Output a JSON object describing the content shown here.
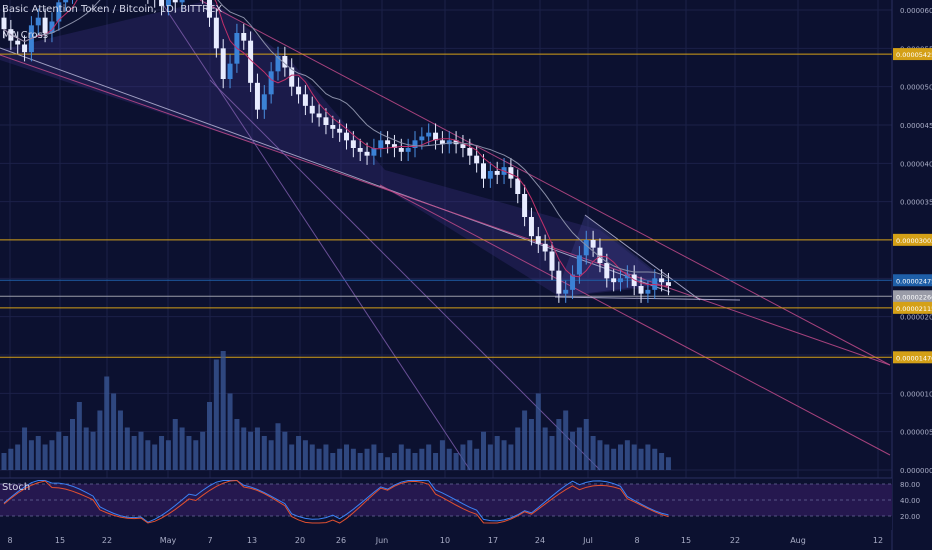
{
  "header": {
    "symbol": "Basic Attention Token / Bitcoin, 1D, BITTREX",
    "indicator": "MA Cross",
    "stoch_label": "Stoch"
  },
  "chart_data": {
    "type": "candlestick",
    "x_ticks": [
      "8",
      "15",
      "22",
      "May",
      "7",
      "13",
      "20",
      "26",
      "Jun",
      "10",
      "17",
      "24",
      "Jul",
      "8",
      "15",
      "22",
      "Aug",
      "12"
    ],
    "y_ticks": [
      "0.00006000",
      "0.00005500",
      "0.00005000",
      "0.00004500",
      "0.00004000",
      "0.00003500",
      "0.00003000",
      "0.00002500",
      "0.00002000",
      "0.00001500",
      "0.00001000",
      "0.00000500",
      "0.00000000"
    ],
    "horizontal_levels": [
      {
        "value": 5.425e-05,
        "label": "0.00005425",
        "color": "#d4a017"
      },
      {
        "value": 3.002e-05,
        "label": "0.00003002",
        "color": "#d4a017"
      },
      {
        "value": 2.475e-05,
        "label": "0.00002475",
        "color": "#1e5fa8"
      },
      {
        "value": 2.266e-05,
        "label": "0.00002266",
        "color": "#9a9ca8"
      },
      {
        "value": 2.115e-05,
        "label": "0.00002115",
        "color": "#d4a017"
      },
      {
        "value": 1.47e-05,
        "label": "0.00001470",
        "color": "#d4a017"
      }
    ],
    "stoch_ticks": [
      "80.00",
      "40.00",
      "20.00"
    ],
    "close": [
      5.75,
      5.6,
      5.55,
      5.45,
      5.8,
      5.9,
      5.7,
      5.85,
      6.1,
      6.2,
      6.3,
      6.45,
      6.5,
      6.6,
      6.7,
      6.8,
      6.75,
      6.6,
      6.55,
      6.4,
      6.35,
      6.2,
      6.15,
      6.05,
      6.2,
      6.1,
      6.3,
      6.5,
      6.4,
      6.2,
      5.9,
      5.5,
      5.1,
      5.3,
      5.7,
      5.6,
      5.05,
      4.7,
      4.9,
      5.2,
      5.4,
      5.25,
      5.0,
      4.9,
      4.75,
      4.65,
      4.6,
      4.5,
      4.45,
      4.4,
      4.3,
      4.2,
      4.15,
      4.1,
      4.2,
      4.3,
      4.25,
      4.2,
      4.15,
      4.2,
      4.3,
      4.35,
      4.4,
      4.3,
      4.25,
      4.3,
      4.25,
      4.2,
      4.1,
      4.0,
      3.8,
      3.9,
      3.85,
      3.95,
      3.8,
      3.6,
      3.3,
      3.05,
      2.95,
      2.85,
      2.6,
      2.3,
      2.35,
      2.55,
      2.8,
      3.0,
      2.9,
      2.7,
      2.5,
      2.45,
      2.5,
      2.55,
      2.4,
      2.3,
      2.35,
      2.5,
      2.45,
      2.4
    ],
    "open": [
      5.9,
      5.75,
      5.6,
      5.55,
      5.45,
      5.8,
      5.9,
      5.7,
      5.85,
      6.1,
      6.2,
      6.3,
      6.45,
      6.5,
      6.6,
      6.7,
      6.8,
      6.75,
      6.6,
      6.55,
      6.4,
      6.35,
      6.2,
      6.15,
      6.05,
      6.2,
      6.1,
      6.3,
      6.5,
      6.4,
      6.2,
      5.9,
      5.5,
      5.1,
      5.3,
      5.7,
      5.6,
      5.05,
      4.7,
      4.9,
      5.2,
      5.4,
      5.25,
      5.0,
      4.9,
      4.75,
      4.65,
      4.6,
      4.5,
      4.45,
      4.4,
      4.3,
      4.2,
      4.15,
      4.1,
      4.2,
      4.3,
      4.25,
      4.2,
      4.15,
      4.2,
      4.3,
      4.35,
      4.4,
      4.3,
      4.25,
      4.3,
      4.25,
      4.2,
      4.1,
      4.0,
      3.8,
      3.9,
      3.85,
      3.95,
      3.8,
      3.6,
      3.3,
      3.05,
      2.95,
      2.85,
      2.6,
      2.3,
      2.35,
      2.55,
      2.8,
      3.0,
      2.9,
      2.7,
      2.5,
      2.45,
      2.5,
      2.55,
      2.4,
      2.3,
      2.35,
      2.5,
      2.45
    ],
    "volume": [
      0.2,
      0.25,
      0.3,
      0.5,
      0.35,
      0.4,
      0.3,
      0.35,
      0.45,
      0.4,
      0.6,
      0.8,
      0.5,
      0.45,
      0.7,
      1.1,
      0.9,
      0.7,
      0.5,
      0.4,
      0.45,
      0.35,
      0.3,
      0.4,
      0.35,
      0.6,
      0.5,
      0.4,
      0.35,
      0.45,
      0.8,
      1.3,
      1.4,
      0.9,
      0.6,
      0.5,
      0.45,
      0.5,
      0.4,
      0.35,
      0.55,
      0.45,
      0.3,
      0.4,
      0.35,
      0.3,
      0.25,
      0.3,
      0.2,
      0.25,
      0.3,
      0.25,
      0.2,
      0.25,
      0.3,
      0.2,
      0.15,
      0.2,
      0.3,
      0.25,
      0.2,
      0.25,
      0.3,
      0.2,
      0.35,
      0.25,
      0.2,
      0.3,
      0.35,
      0.25,
      0.45,
      0.3,
      0.4,
      0.35,
      0.3,
      0.5,
      0.7,
      0.6,
      0.9,
      0.5,
      0.4,
      0.6,
      0.7,
      0.45,
      0.5,
      0.6,
      0.4,
      0.35,
      0.3,
      0.25,
      0.3,
      0.35,
      0.3,
      0.25,
      0.3,
      0.25,
      0.2,
      0.15
    ]
  }
}
